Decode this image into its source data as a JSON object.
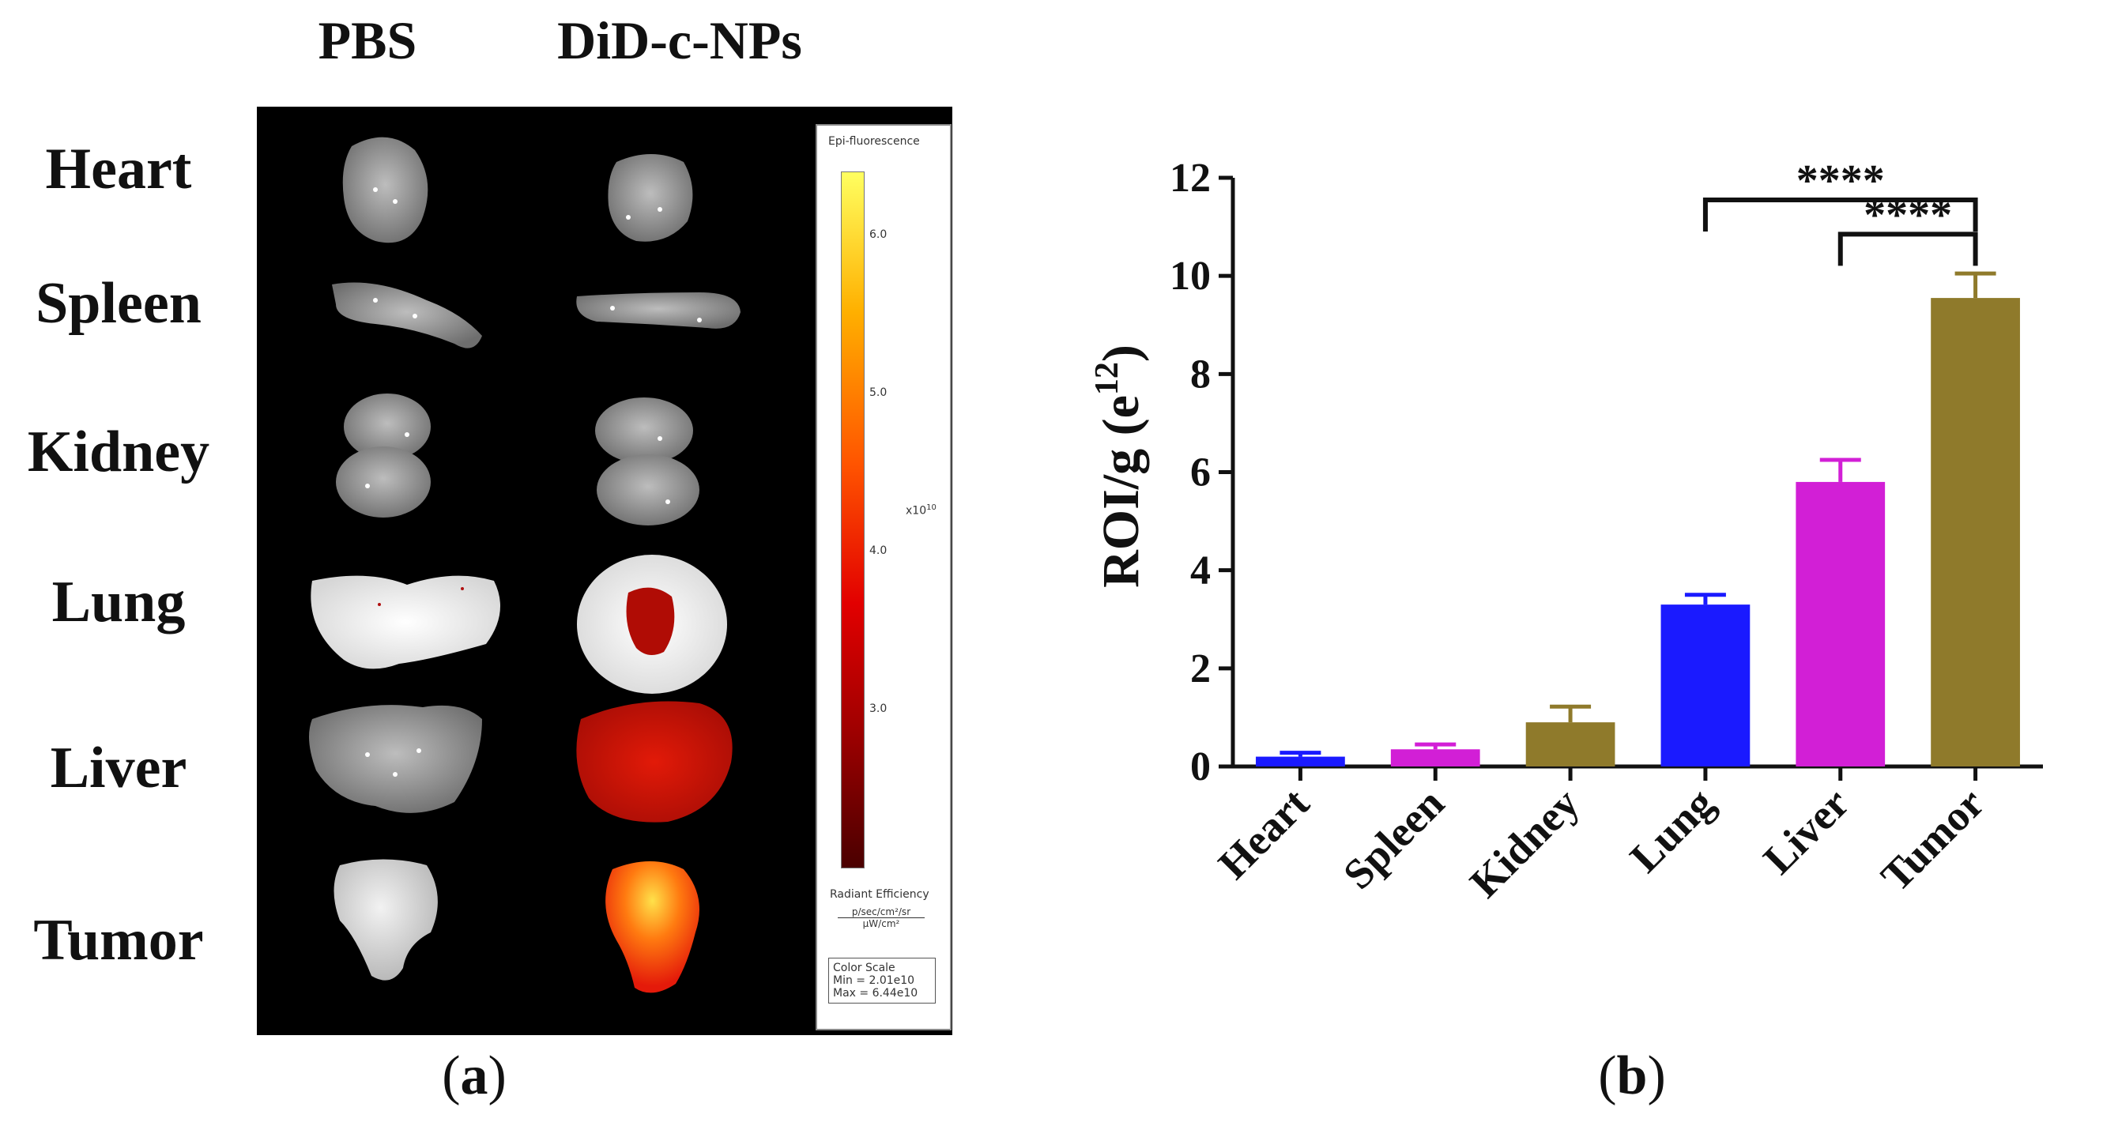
{
  "panel_a": {
    "column_headers": [
      "PBS",
      "DiD-c-NPs"
    ],
    "row_labels": [
      "Heart",
      "Spleen",
      "Kidney",
      "Lung",
      "Liver",
      "Tumor"
    ],
    "colorbar": {
      "title": "Epi-fluorescence",
      "tick_labels": [
        "6.0",
        "5.0",
        "4.0",
        "3.0"
      ],
      "multiplier": "x10",
      "multiplier_exp": "10",
      "unit_label": "Radiant Efficiency",
      "unit_numerator": "p/sec/cm²/sr",
      "unit_denominator": "µW/cm²",
      "color_scale_title": "Color Scale",
      "color_scale_min": "Min = 2.01e10",
      "color_scale_max": "Max = 6.44e10"
    },
    "label": "a"
  },
  "panel_b": {
    "label": "b"
  },
  "chart_data": {
    "type": "bar",
    "categories": [
      "Heart",
      "Spleen",
      "Kidney",
      "Lung",
      "Liver",
      "Tumor"
    ],
    "values": [
      0.2,
      0.35,
      0.9,
      3.3,
      5.8,
      9.55
    ],
    "errors": [
      0.08,
      0.1,
      0.32,
      0.2,
      0.45,
      0.5
    ],
    "colors": [
      "#1a1aff",
      "#d21fd6",
      "#8f7a2b",
      "#1a1aff",
      "#d21fd6",
      "#8f7a2b"
    ],
    "ylabel_base": "ROI/g (e",
    "ylabel_exp": "12",
    "ylabel_close": ")",
    "xlabel": "",
    "ylim": [
      0,
      12
    ],
    "yticks": [
      0,
      2,
      4,
      6,
      8,
      10,
      12
    ],
    "significance": [
      {
        "from": "Lung",
        "to": "Tumor",
        "label": "****"
      },
      {
        "from": "Liver",
        "to": "Tumor",
        "label": "****"
      }
    ]
  }
}
